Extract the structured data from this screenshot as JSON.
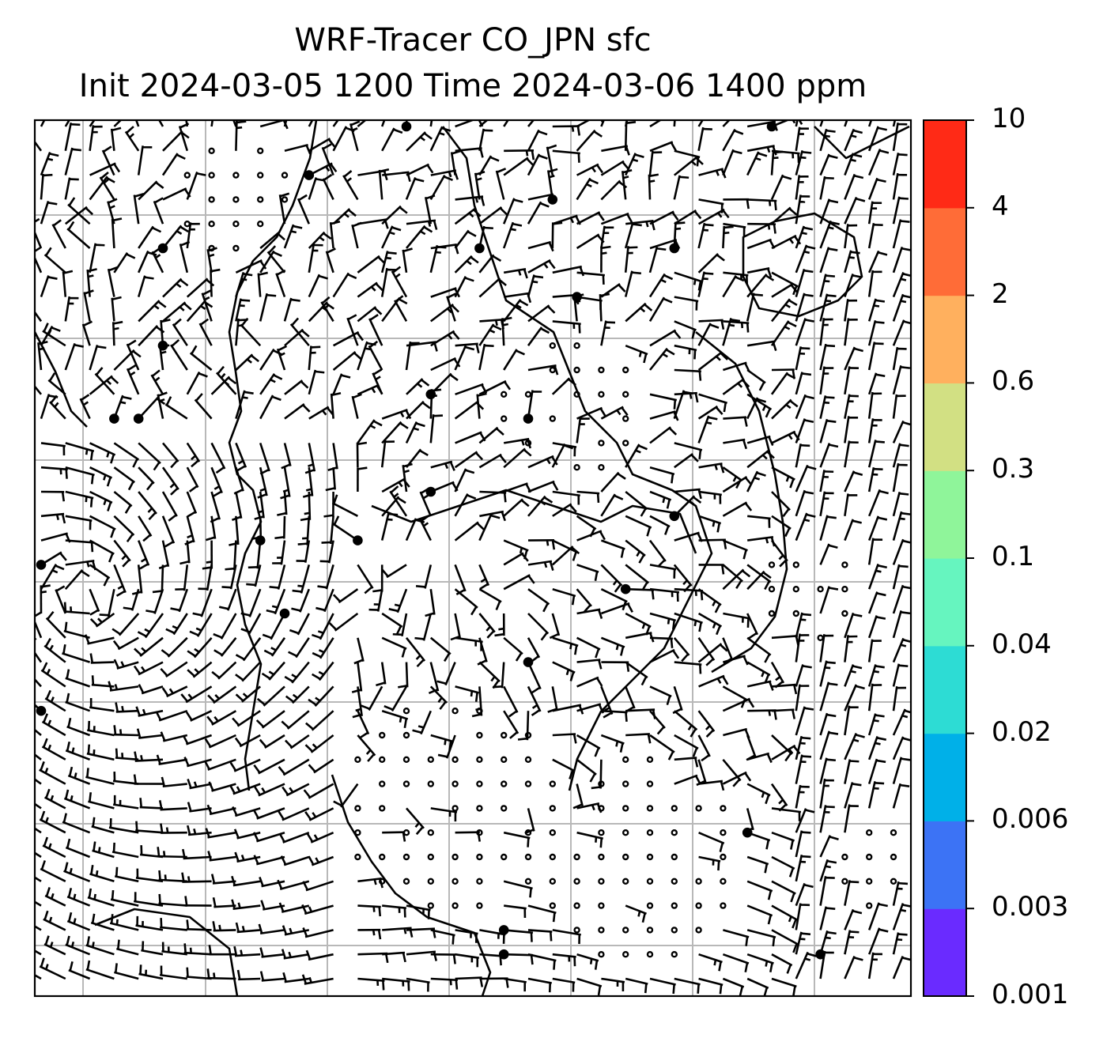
{
  "title": {
    "line1": "WRF-Tracer CO_JPN sfc",
    "line2": "Init 2024-03-05 1200 Time 2024-03-06 1400 ppm"
  },
  "colorbar": {
    "levels": [
      "0.001",
      "0.003",
      "0.006",
      "0.02",
      "0.04",
      "0.1",
      "0.3",
      "0.6",
      "2",
      "4",
      "10"
    ],
    "colors": [
      "#6a2bff",
      "#3c73f5",
      "#00b0e8",
      "#2ddcd4",
      "#66f5bf",
      "#8ff59a",
      "#d2e083",
      "#ffb05e",
      "#ff6c37",
      "#ff2a16"
    ]
  },
  "map": {
    "grid_color": "#b8b8b8",
    "barb_color": "#000000",
    "coast_color": "#000000"
  }
}
